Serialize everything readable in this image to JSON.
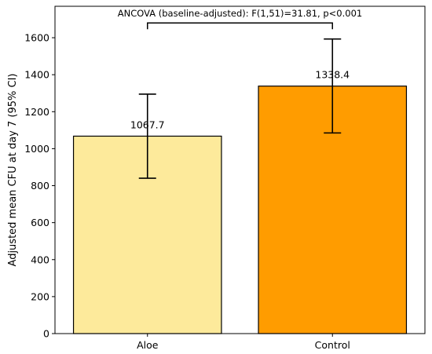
{
  "chart_data": {
    "type": "bar",
    "title": "",
    "xlabel": "",
    "ylabel": "Adjusted mean CFU at day 7 (95% CI)",
    "categories": [
      "Aloe",
      "Control"
    ],
    "values": [
      1067.7,
      1338.4
    ],
    "value_labels": [
      "1067.7",
      "1338.4"
    ],
    "ci_low": [
      840,
      1085
    ],
    "ci_high": [
      1295,
      1593
    ],
    "colors": [
      "#fdea9b",
      "#ff9c00"
    ],
    "ylim": [
      0,
      1770
    ],
    "yticks": [
      0,
      200,
      400,
      600,
      800,
      1000,
      1200,
      1400,
      1600
    ],
    "grid": false,
    "annotation": {
      "text": "ANCOVA (baseline-adjusted): F(1,51)=31.81, p<0.001",
      "bracket_y": 1680
    }
  }
}
